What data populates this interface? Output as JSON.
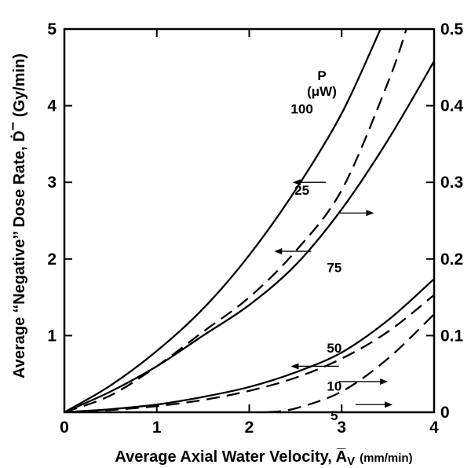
{
  "chart_data": {
    "type": "line",
    "xlabel": "Average Axial Water Velocity, A̅",
    "xlabel_subscript": "V",
    "xlabel_unit": "(mm/min)",
    "ylabel": "Average ‘‘Negative’’ Dose Rate, Ḋ",
    "ylabel_superscript": "–",
    "ylabel_unit": "(Gy/min)",
    "legend_title": "P",
    "legend_unit": "(μW)",
    "xlim": [
      0,
      4
    ],
    "ylim_left": [
      0,
      5
    ],
    "ylim_right": [
      0,
      0.5
    ],
    "x_ticks": [
      "0",
      "1",
      "2",
      "3",
      "4"
    ],
    "y_left_ticks": [
      "1",
      "2",
      "3",
      "4",
      "5"
    ],
    "y_right_ticks": [
      "0",
      "0.1",
      "0.2",
      "0.3",
      "0.4",
      "0.5"
    ],
    "series": [
      {
        "name": "100",
        "axis": "left",
        "style": "solid",
        "x": [
          0,
          0.5,
          1.0,
          1.5,
          2.0,
          2.5,
          3.0,
          3.42
        ],
        "y": [
          0,
          0.35,
          0.8,
          1.35,
          2.05,
          2.9,
          3.9,
          5.0
        ]
      },
      {
        "name": "25",
        "axis": "right",
        "style": "dashed",
        "x": [
          0,
          0.5,
          1.0,
          1.5,
          2.0,
          2.5,
          3.0,
          3.5,
          3.7
        ],
        "y": [
          0,
          0.022,
          0.06,
          0.105,
          0.15,
          0.21,
          0.29,
          0.43,
          0.5
        ]
      },
      {
        "name": "75",
        "axis": "left",
        "style": "solid",
        "x": [
          0,
          0.5,
          1.0,
          1.5,
          2.0,
          2.5,
          3.0,
          3.5,
          4.0
        ],
        "y": [
          0,
          0.27,
          0.6,
          1.0,
          1.4,
          1.92,
          2.65,
          3.55,
          4.58
        ]
      },
      {
        "name": "50",
        "axis": "left",
        "style": "solid",
        "x": [
          0,
          0.5,
          1.0,
          1.5,
          2.0,
          2.5,
          3.0,
          3.5,
          4.0
        ],
        "y": [
          0,
          0.04,
          0.1,
          0.2,
          0.33,
          0.52,
          0.78,
          1.2,
          1.74
        ]
      },
      {
        "name": "10",
        "axis": "right",
        "style": "dashed",
        "x": [
          0,
          0.5,
          1.0,
          1.5,
          2.0,
          2.5,
          3.0,
          3.5,
          4.0
        ],
        "y": [
          0,
          0.003,
          0.008,
          0.016,
          0.028,
          0.045,
          0.07,
          0.105,
          0.153
        ]
      },
      {
        "name": "5",
        "axis": "right",
        "style": "dashed",
        "x": [
          2.2,
          2.5,
          3.0,
          3.5,
          4.0
        ],
        "y": [
          0.0,
          0.005,
          0.027,
          0.07,
          0.128
        ]
      }
    ],
    "curve_labels": [
      {
        "text": "100",
        "x": 2.57,
        "y": 3.9
      },
      {
        "text": "25",
        "x": 2.57,
        "y": 2.84
      },
      {
        "text": "75",
        "x": 2.92,
        "y": 1.83
      },
      {
        "text": "50",
        "x": 2.92,
        "y": 0.78
      },
      {
        "text": "10",
        "x": 2.92,
        "y": 0.28
      },
      {
        "text": "5",
        "x": 2.92,
        "y": -0.1
      }
    ],
    "indicator_arrows": [
      {
        "series": "100",
        "points_to": "left",
        "x_from": 2.83,
        "x_to": 2.47,
        "y": 3.0
      },
      {
        "series": "25",
        "points_to": "right",
        "x_from": 2.97,
        "x_to": 3.35,
        "y": 2.6
      },
      {
        "series": "75",
        "points_to": "left",
        "x_from": 2.67,
        "x_to": 2.27,
        "y": 2.1
      },
      {
        "series": "50",
        "points_to": "left",
        "x_from": 2.97,
        "x_to": 2.45,
        "y": 0.6
      },
      {
        "series": "10",
        "points_to": "right",
        "x_from": 2.97,
        "x_to": 3.5,
        "y": 0.4
      },
      {
        "series": "5",
        "points_to": "right",
        "x_from": 3.15,
        "x_to": 3.55,
        "y": 0.1
      }
    ]
  }
}
